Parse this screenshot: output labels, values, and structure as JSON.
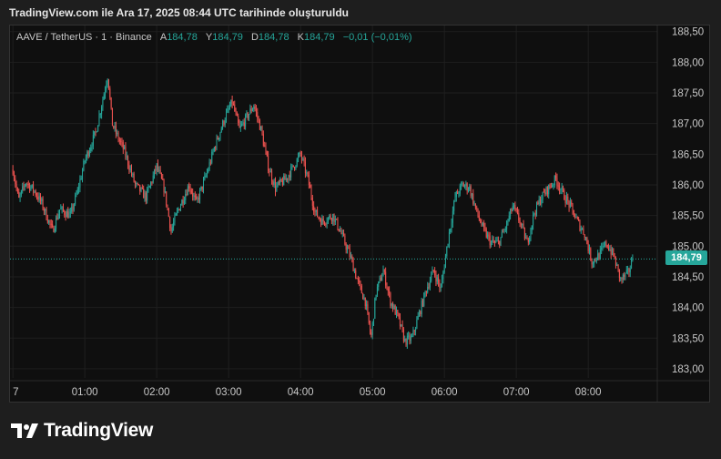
{
  "header": {
    "credit": "TradingView.com ile Ara 17, 2025 08:44 UTC tarihinde oluşturuldu"
  },
  "legend": {
    "symbol": "AAVE / TetherUS · 1 · Binance",
    "open_label": "A",
    "open_value": "184,78",
    "high_label": "Y",
    "high_value": "184,79",
    "low_label": "D",
    "low_value": "184,78",
    "close_label": "K",
    "close_value": "184,79",
    "change": "−0,01 (−0,01%)"
  },
  "price_tag": "184,79",
  "branding": {
    "name": "TradingView",
    "logo_icon": "tradingview-logo-icon"
  },
  "colors": {
    "up": "#26a69a",
    "down": "#ef5350",
    "background": "#0f0f0f",
    "grid": "#1f1f1f",
    "axis_text": "#c8c8c8"
  },
  "chart_data": {
    "type": "candlestick",
    "timeframe": "1 minute",
    "ylim": [
      182.85,
      188.6
    ],
    "y_ticks": [
      {
        "value": 183.0,
        "label": "183,00"
      },
      {
        "value": 183.5,
        "label": "183,50"
      },
      {
        "value": 184.0,
        "label": "184,00"
      },
      {
        "value": 184.5,
        "label": "184,50"
      },
      {
        "value": 185.0,
        "label": "185,00"
      },
      {
        "value": 185.5,
        "label": "185,50"
      },
      {
        "value": 186.0,
        "label": "186,00"
      },
      {
        "value": 186.5,
        "label": "186,50"
      },
      {
        "value": 187.0,
        "label": "187,00"
      },
      {
        "value": 187.5,
        "label": "187,50"
      },
      {
        "value": 188.0,
        "label": "188,00"
      },
      {
        "value": 188.5,
        "label": "188,50"
      }
    ],
    "x_range_hours": [
      -0.04,
      8.96
    ],
    "x_ticks": [
      {
        "t": 0.0,
        "label": "7"
      },
      {
        "t": 1.0,
        "label": "01:00"
      },
      {
        "t": 2.0,
        "label": "02:00"
      },
      {
        "t": 3.0,
        "label": "03:00"
      },
      {
        "t": 4.0,
        "label": "04:00"
      },
      {
        "t": 5.0,
        "label": "05:00"
      },
      {
        "t": 6.0,
        "label": "06:00"
      },
      {
        "t": 7.0,
        "label": "07:00"
      },
      {
        "t": 8.0,
        "label": "08:00"
      }
    ],
    "last_price": 184.79,
    "close_path": [
      [
        0.0,
        186.25
      ],
      [
        0.08,
        185.75
      ],
      [
        0.18,
        186.05
      ],
      [
        0.3,
        185.9
      ],
      [
        0.4,
        185.7
      ],
      [
        0.55,
        185.25
      ],
      [
        0.65,
        185.6
      ],
      [
        0.8,
        185.5
      ],
      [
        0.9,
        185.9
      ],
      [
        1.0,
        186.4
      ],
      [
        1.15,
        186.85
      ],
      [
        1.25,
        187.4
      ],
      [
        1.32,
        187.8
      ],
      [
        1.38,
        187.0
      ],
      [
        1.45,
        186.8
      ],
      [
        1.55,
        186.55
      ],
      [
        1.7,
        186.0
      ],
      [
        1.85,
        185.8
      ],
      [
        2.0,
        186.3
      ],
      [
        2.1,
        185.95
      ],
      [
        2.2,
        185.25
      ],
      [
        2.3,
        185.6
      ],
      [
        2.45,
        186.0
      ],
      [
        2.55,
        185.7
      ],
      [
        2.7,
        186.2
      ],
      [
        2.8,
        186.6
      ],
      [
        2.95,
        187.1
      ],
      [
        3.05,
        187.35
      ],
      [
        3.15,
        186.9
      ],
      [
        3.25,
        187.1
      ],
      [
        3.35,
        187.3
      ],
      [
        3.45,
        186.9
      ],
      [
        3.55,
        186.3
      ],
      [
        3.65,
        185.95
      ],
      [
        3.8,
        186.1
      ],
      [
        3.9,
        186.3
      ],
      [
        4.0,
        186.5
      ],
      [
        4.1,
        186.1
      ],
      [
        4.2,
        185.55
      ],
      [
        4.3,
        185.4
      ],
      [
        4.45,
        185.5
      ],
      [
        4.55,
        185.25
      ],
      [
        4.7,
        184.8
      ],
      [
        4.8,
        184.4
      ],
      [
        4.9,
        184.1
      ],
      [
        4.98,
        183.5
      ],
      [
        5.05,
        184.25
      ],
      [
        5.15,
        184.6
      ],
      [
        5.25,
        184.1
      ],
      [
        5.35,
        183.85
      ],
      [
        5.45,
        183.45
      ],
      [
        5.55,
        183.5
      ],
      [
        5.65,
        183.9
      ],
      [
        5.75,
        184.3
      ],
      [
        5.85,
        184.6
      ],
      [
        5.95,
        184.3
      ],
      [
        6.05,
        185.1
      ],
      [
        6.15,
        185.8
      ],
      [
        6.25,
        186.0
      ],
      [
        6.35,
        185.95
      ],
      [
        6.45,
        185.55
      ],
      [
        6.55,
        185.25
      ],
      [
        6.65,
        185.05
      ],
      [
        6.75,
        185.05
      ],
      [
        6.85,
        185.3
      ],
      [
        6.95,
        185.65
      ],
      [
        7.05,
        185.4
      ],
      [
        7.15,
        185.05
      ],
      [
        7.25,
        185.55
      ],
      [
        7.35,
        185.8
      ],
      [
        7.45,
        185.95
      ],
      [
        7.55,
        186.1
      ],
      [
        7.65,
        185.85
      ],
      [
        7.75,
        185.65
      ],
      [
        7.85,
        185.4
      ],
      [
        7.95,
        185.2
      ],
      [
        8.05,
        184.75
      ],
      [
        8.15,
        184.85
      ],
      [
        8.25,
        185.05
      ],
      [
        8.35,
        184.85
      ],
      [
        8.45,
        184.45
      ],
      [
        8.55,
        184.55
      ],
      [
        8.62,
        184.79
      ]
    ]
  }
}
